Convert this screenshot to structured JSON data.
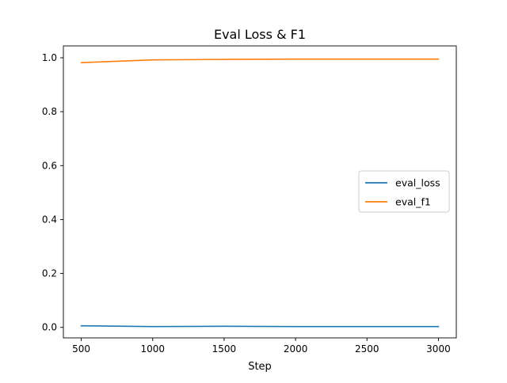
{
  "chart_data": {
    "type": "line",
    "title": "Eval Loss & F1",
    "xlabel": "Step",
    "ylabel": "",
    "x": [
      500,
      1000,
      1500,
      2000,
      2500,
      3000
    ],
    "series": [
      {
        "name": "eval_loss",
        "color": "#1f77b4",
        "values": [
          0.006,
          0.003,
          0.004,
          0.003,
          0.003,
          0.003
        ]
      },
      {
        "name": "eval_f1",
        "color": "#ff7f0e",
        "values": [
          0.982,
          0.992,
          0.994,
          0.995,
          0.995,
          0.995
        ]
      }
    ],
    "xlim": [
      375,
      3125
    ],
    "ylim": [
      -0.039,
      1.044
    ],
    "xticks": [
      500,
      1000,
      1500,
      2000,
      2500,
      3000
    ],
    "yticks": [
      0.0,
      0.2,
      0.4,
      0.6,
      0.8,
      1.0
    ],
    "grid": false,
    "legend_position": "center-right"
  }
}
